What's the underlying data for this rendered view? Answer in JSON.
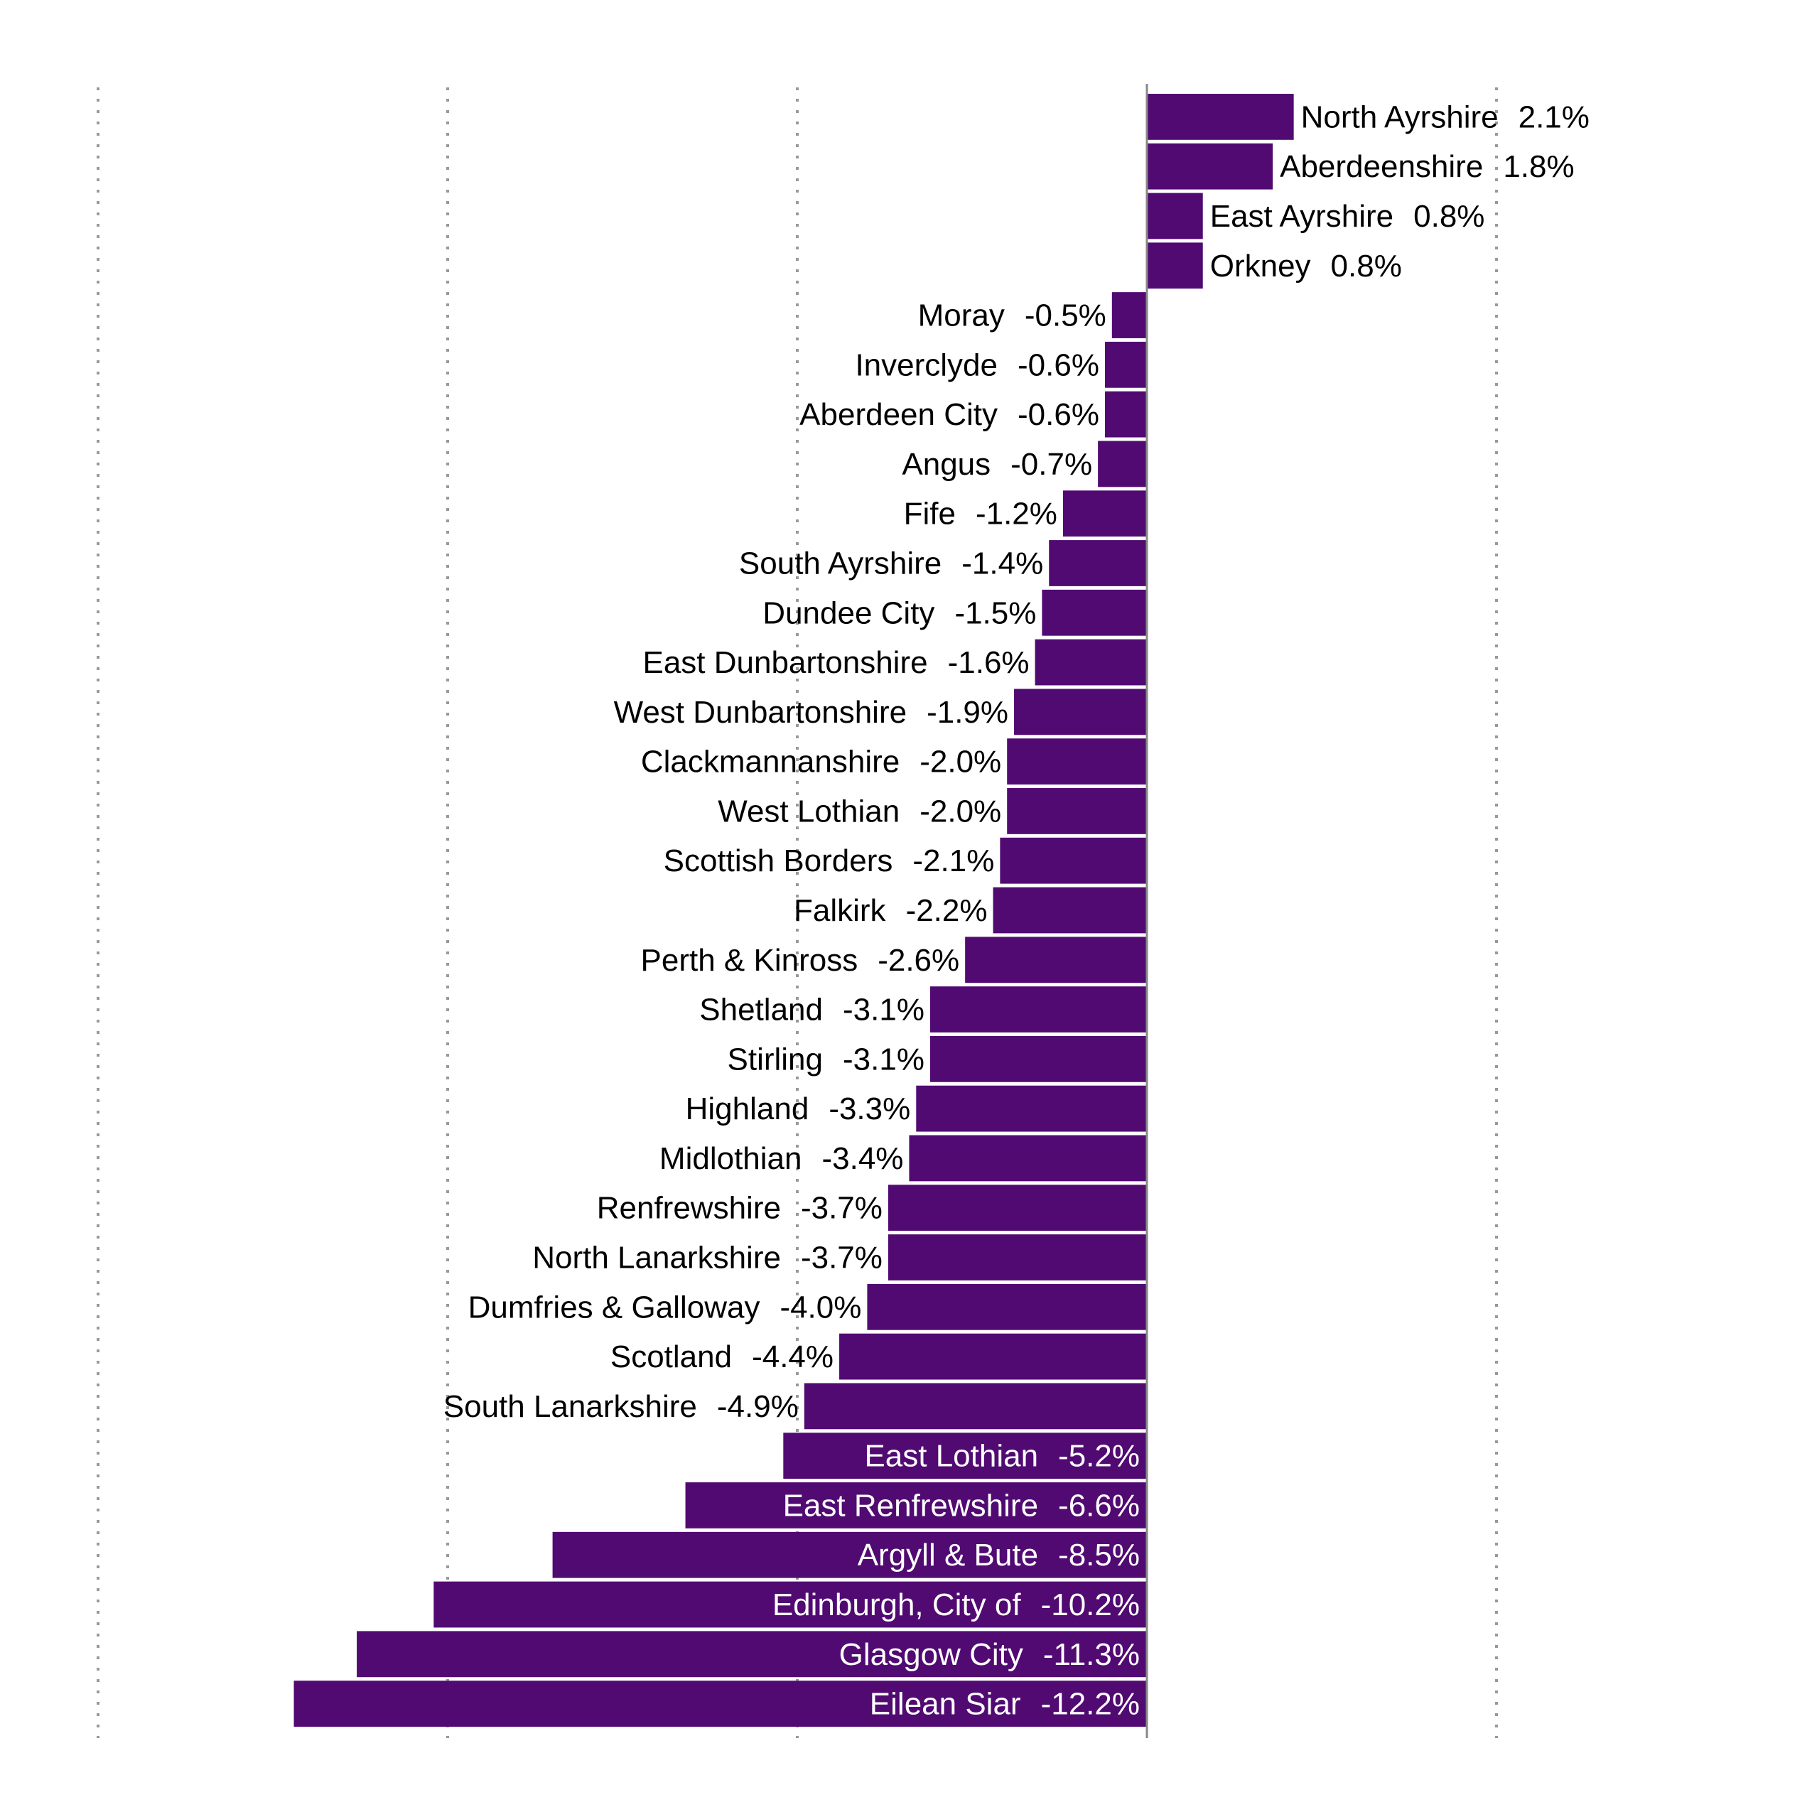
{
  "chart_data": {
    "type": "bar",
    "orientation": "horizontal",
    "title": "",
    "xlabel": "",
    "ylabel": "",
    "xlim": [
      -15,
      5
    ],
    "gridlines": [
      -15,
      -10,
      -5,
      5
    ],
    "grid": true,
    "bar_color": "#510a72",
    "label_color_inside": "#ffffff",
    "label_color_outside": "#000000",
    "unit": "%",
    "categories": [
      "North Ayrshire",
      "Aberdeenshire",
      "East Ayrshire",
      "Orkney",
      "Moray",
      "Inverclyde",
      "Aberdeen City",
      "Angus",
      "Fife",
      "South Ayrshire",
      "Dundee City",
      "East Dunbartonshire",
      "West Dunbartonshire",
      "Clackmannanshire",
      "West Lothian",
      "Scottish Borders",
      "Falkirk",
      "Perth & Kinross",
      "Shetland",
      "Stirling",
      "Highland",
      "Midlothian",
      "Renfrewshire",
      "North Lanarkshire",
      "Dumfries & Galloway",
      "Scotland",
      "South Lanarkshire",
      "East Lothian",
      "East Renfrewshire",
      "Argyll & Bute",
      "Edinburgh, City of",
      "Glasgow City",
      "Eilean Siar"
    ],
    "values": [
      2.1,
      1.8,
      0.8,
      0.8,
      -0.5,
      -0.6,
      -0.6,
      -0.7,
      -1.2,
      -1.4,
      -1.5,
      -1.6,
      -1.9,
      -2.0,
      -2.0,
      -2.1,
      -2.2,
      -2.6,
      -3.1,
      -3.1,
      -3.3,
      -3.4,
      -3.7,
      -3.7,
      -4.0,
      -4.4,
      -4.9,
      -5.2,
      -6.6,
      -8.5,
      -10.2,
      -11.3,
      -12.2
    ],
    "value_labels": [
      "2.1%",
      "1.8%",
      "0.8%",
      "0.8%",
      "-0.5%",
      "-0.6%",
      "-0.6%",
      "-0.7%",
      "-1.2%",
      "-1.4%",
      "-1.5%",
      "-1.6%",
      "-1.9%",
      "-2.0%",
      "-2.0%",
      "-2.1%",
      "-2.2%",
      "-2.6%",
      "-3.1%",
      "-3.1%",
      "-3.3%",
      "-3.4%",
      "-3.7%",
      "-3.7%",
      "-4.0%",
      "-4.4%",
      "-4.9%",
      "-5.2%",
      "-6.6%",
      "-8.5%",
      "-10.2%",
      "-11.3%",
      "-12.2%"
    ]
  }
}
